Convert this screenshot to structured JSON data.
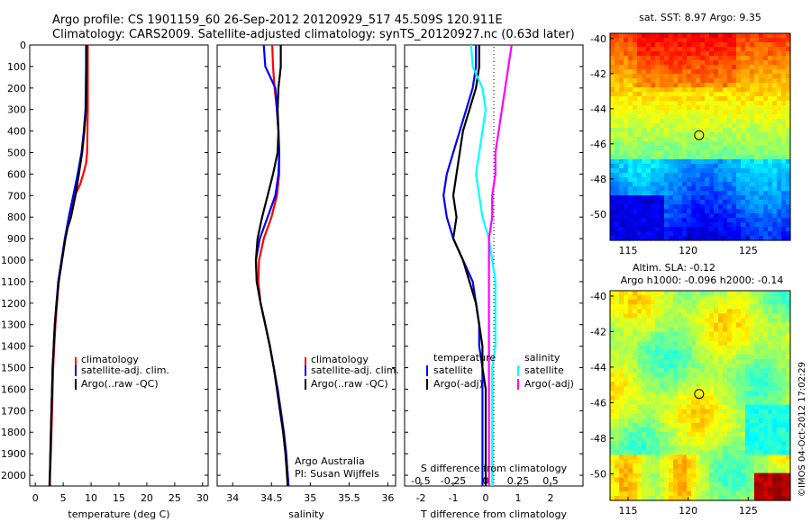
{
  "header": {
    "line1": "Argo profile: CS 1901159_60 26-Sep-2012 20120929_517 45.509S 120.911E",
    "line2": "Climatology: CARS2009. Satellite-adjusted climatology: synTS_20120927.nc (0.63d later)"
  },
  "colors": {
    "climatology": "#ff0000",
    "satellite": "#0000ff",
    "argo": "#000000",
    "sal_satellite": "#00ffff",
    "sal_argo": "#ff00ff"
  },
  "chart_data": [
    {
      "type": "line",
      "id": "temperature",
      "xlabel": "temperature (deg C)",
      "ylabel": "",
      "xlim": [
        -1,
        31
      ],
      "ylim": [
        2050,
        0
      ],
      "xticks": [
        "0",
        "5",
        "10",
        "15",
        "20",
        "25",
        "30"
      ],
      "yticks": [
        "0",
        "100",
        "200",
        "300",
        "400",
        "500",
        "600",
        "700",
        "800",
        "900",
        "1000",
        "1100",
        "1200",
        "1300",
        "1400",
        "1500",
        "1600",
        "1700",
        "1800",
        "1900",
        "2000"
      ],
      "legend": [
        "climatology",
        "satellite-adj. clim.",
        "Argo(..raw -QC)"
      ],
      "legend_position": "lower-center",
      "series": [
        {
          "name": "climatology",
          "color": "#ff0000",
          "x": [
            9.4,
            9.4,
            9.4,
            9.3,
            9.1,
            8.6,
            8.0,
            7.1,
            6.1,
            5.3,
            4.7,
            4.2,
            3.9,
            3.6,
            3.4,
            3.2,
            3.1,
            3.0,
            2.9,
            2.8,
            2.7,
            2.6,
            2.5
          ],
          "y": [
            0,
            100,
            300,
            500,
            550,
            600,
            650,
            700,
            800,
            900,
            1000,
            1100,
            1200,
            1300,
            1400,
            1500,
            1600,
            1700,
            1800,
            1900,
            1950,
            2000,
            2050
          ]
        },
        {
          "name": "satellite-adj. clim.",
          "color": "#0000ff",
          "x": [
            9.1,
            9.1,
            9.0,
            8.7,
            8.3,
            7.6,
            6.8,
            6.0,
            5.3,
            4.7,
            4.1,
            3.8,
            3.5,
            3.3,
            3.1,
            3.0,
            2.9,
            2.8,
            2.7,
            2.6,
            2.6
          ],
          "y": [
            0,
            100,
            300,
            400,
            500,
            600,
            700,
            800,
            900,
            1000,
            1100,
            1200,
            1300,
            1400,
            1500,
            1600,
            1700,
            1800,
            1900,
            2000,
            2050
          ]
        },
        {
          "name": "Argo(..raw -QC)",
          "color": "#000000",
          "x": [
            9.2,
            9.2,
            9.1,
            8.8,
            8.4,
            7.8,
            7.2,
            6.4,
            5.8,
            5.4,
            4.8,
            4.2,
            3.8,
            3.5,
            3.3,
            3.1,
            3.0,
            2.9,
            2.8,
            2.7,
            2.6
          ],
          "y": [
            0,
            100,
            300,
            400,
            500,
            600,
            700,
            800,
            850,
            900,
            1000,
            1100,
            1200,
            1300,
            1400,
            1500,
            1600,
            1700,
            1800,
            1900,
            2050
          ]
        }
      ]
    },
    {
      "type": "line",
      "id": "salinity",
      "xlabel": "salinity",
      "xlim": [
        33.8,
        36.1
      ],
      "ylim": [
        2050,
        0
      ],
      "xticks": [
        "34",
        "34.5",
        "35",
        "35.5",
        "36"
      ],
      "legend": [
        "climatology",
        "satellite-adj. clim.",
        "Argo(..raw -QC)"
      ],
      "legend_position": "lower-center",
      "annotation": [
        "Argo Australia",
        "PI: Susan Wijffels"
      ],
      "series": [
        {
          "name": "climatology",
          "color": "#ff0000",
          "x": [
            34.51,
            34.52,
            34.54,
            34.57,
            34.59,
            34.6,
            34.6,
            34.57,
            34.5,
            34.4,
            34.34,
            34.33,
            34.36,
            34.42,
            34.48,
            34.53,
            34.58,
            34.62,
            34.66,
            34.69,
            34.71,
            34.72
          ],
          "y": [
            0,
            100,
            200,
            300,
            400,
            500,
            600,
            700,
            800,
            900,
            1000,
            1100,
            1200,
            1300,
            1400,
            1500,
            1600,
            1700,
            1800,
            1900,
            2000,
            2050
          ]
        },
        {
          "name": "satellite-adj. clim.",
          "color": "#0000ff",
          "x": [
            34.4,
            34.42,
            34.55,
            34.57,
            34.59,
            34.6,
            34.59,
            34.55,
            34.45,
            34.35,
            34.3,
            34.31,
            34.36,
            34.42,
            34.48,
            34.53,
            34.58,
            34.62,
            34.66,
            34.69,
            34.71,
            34.72
          ],
          "y": [
            0,
            100,
            200,
            300,
            400,
            500,
            600,
            700,
            800,
            900,
            1000,
            1100,
            1200,
            1300,
            1400,
            1500,
            1600,
            1700,
            1800,
            1900,
            2000,
            2050
          ]
        },
        {
          "name": "Argo(..raw -QC)",
          "color": "#000000",
          "x": [
            34.62,
            34.62,
            34.59,
            34.58,
            34.59,
            34.58,
            34.52,
            34.45,
            34.38,
            34.32,
            34.3,
            34.31,
            34.36,
            34.42,
            34.48,
            34.53,
            34.57,
            34.61,
            34.65,
            34.68,
            34.7,
            34.71
          ],
          "y": [
            0,
            100,
            200,
            300,
            400,
            500,
            600,
            700,
            800,
            900,
            1000,
            1100,
            1200,
            1300,
            1400,
            1500,
            1600,
            1700,
            1800,
            1900,
            2000,
            2050
          ]
        }
      ]
    },
    {
      "type": "line",
      "id": "difference",
      "xlabel": "T difference from climatology",
      "xlabel_top": "S difference from climatology",
      "xlim": [
        -2.5,
        3.0
      ],
      "ylim": [
        2050,
        0
      ],
      "xticks": [
        "-2",
        "-1",
        "0",
        "1",
        "2"
      ],
      "xticks_top": [
        "-0.5",
        "-0.25",
        "0",
        "0.25",
        "0.5"
      ],
      "legend_temperature": {
        "title": "temperature",
        "entries": [
          "satellite",
          "Argo(-adj)"
        ]
      },
      "legend_salinity": {
        "title": "salinity",
        "entries": [
          "satellite",
          "Argo(-adj)"
        ]
      },
      "series": [
        {
          "name": "satellite",
          "group": "temperature",
          "color": "#0000ff",
          "x": [
            -0.3,
            -0.3,
            -0.4,
            -0.6,
            -0.8,
            -1.0,
            -1.2,
            -1.3,
            -1.2,
            -1.0,
            -0.7,
            -0.4,
            -0.3,
            -0.2,
            -0.2,
            -0.1,
            -0.1,
            -0.1,
            -0.1,
            -0.1,
            -0.1
          ],
          "y": [
            0,
            100,
            200,
            300,
            400,
            500,
            600,
            700,
            800,
            900,
            1000,
            1100,
            1200,
            1300,
            1400,
            1500,
            1600,
            1700,
            1800,
            1900,
            2050
          ]
        },
        {
          "name": "Argo(-adj)",
          "group": "temperature",
          "color": "#000000",
          "x": [
            -0.2,
            -0.2,
            -0.3,
            -0.5,
            -0.7,
            -0.8,
            -0.9,
            -1.0,
            -0.9,
            -1.0,
            -0.7,
            -0.5,
            -0.3,
            -0.2,
            -0.1,
            -0.1,
            0.0,
            0.0,
            0.0,
            0.0,
            0.0
          ],
          "y": [
            0,
            100,
            200,
            300,
            400,
            500,
            600,
            700,
            800,
            900,
            1000,
            1100,
            1200,
            1300,
            1400,
            1500,
            1600,
            1700,
            1800,
            1900,
            2050
          ]
        },
        {
          "name": "satellite",
          "group": "salinity",
          "color": "#00ffff",
          "x": [
            -0.45,
            -0.4,
            -0.1,
            0.0,
            -0.1,
            -0.2,
            -0.3,
            -0.2,
            -0.1,
            0.1,
            0.2,
            0.3,
            0.3,
            0.3,
            0.3,
            0.2,
            0.2,
            0.2,
            0.2,
            0.2,
            0.2
          ],
          "y": [
            0,
            100,
            200,
            300,
            400,
            500,
            600,
            700,
            800,
            900,
            1000,
            1100,
            1200,
            1300,
            1400,
            1500,
            1600,
            1700,
            1800,
            1900,
            2050
          ]
        },
        {
          "name": "Argo(-adj)",
          "group": "salinity",
          "color": "#ff00ff",
          "x": [
            0.8,
            0.7,
            0.6,
            0.5,
            0.4,
            0.3,
            0.3,
            0.2,
            0.2,
            0.1,
            0.1,
            0.1,
            0.1,
            0.1,
            0.1,
            0.1,
            0.1,
            0.1,
            0.1,
            0.1,
            0.1
          ],
          "y": [
            0,
            100,
            200,
            300,
            400,
            500,
            600,
            700,
            800,
            900,
            1000,
            1100,
            1200,
            1300,
            1400,
            1500,
            1600,
            1700,
            1800,
            1900,
            2050
          ]
        }
      ]
    },
    {
      "type": "heatmap",
      "id": "sst_map",
      "title": "sat. SST: 8.97  Argo: 9.35",
      "xlim": [
        113.5,
        128.5
      ],
      "ylim": [
        -51.5,
        -39.7
      ],
      "xticks": [
        "115",
        "120",
        "125"
      ],
      "yticks": [
        "-40",
        "-42",
        "-44",
        "-46",
        "-48",
        "-50"
      ],
      "marker": {
        "lon": 120.911,
        "lat": -45.509
      }
    },
    {
      "type": "heatmap",
      "id": "sla_map",
      "title": "Altim. SLA: -0.12",
      "subtitle": "Argo h1000: -0.096 h2000: -0.14",
      "xlim": [
        113.5,
        128.5
      ],
      "ylim": [
        -51.5,
        -39.7
      ],
      "xticks": [
        "115",
        "120",
        "125"
      ],
      "yticks": [
        "-40",
        "-42",
        "-44",
        "-46",
        "-48",
        "-50"
      ],
      "marker": {
        "lon": 120.911,
        "lat": -45.509
      }
    }
  ],
  "footer": {
    "credit": "©IMOS 04-Oct-2012 17:02:29"
  }
}
